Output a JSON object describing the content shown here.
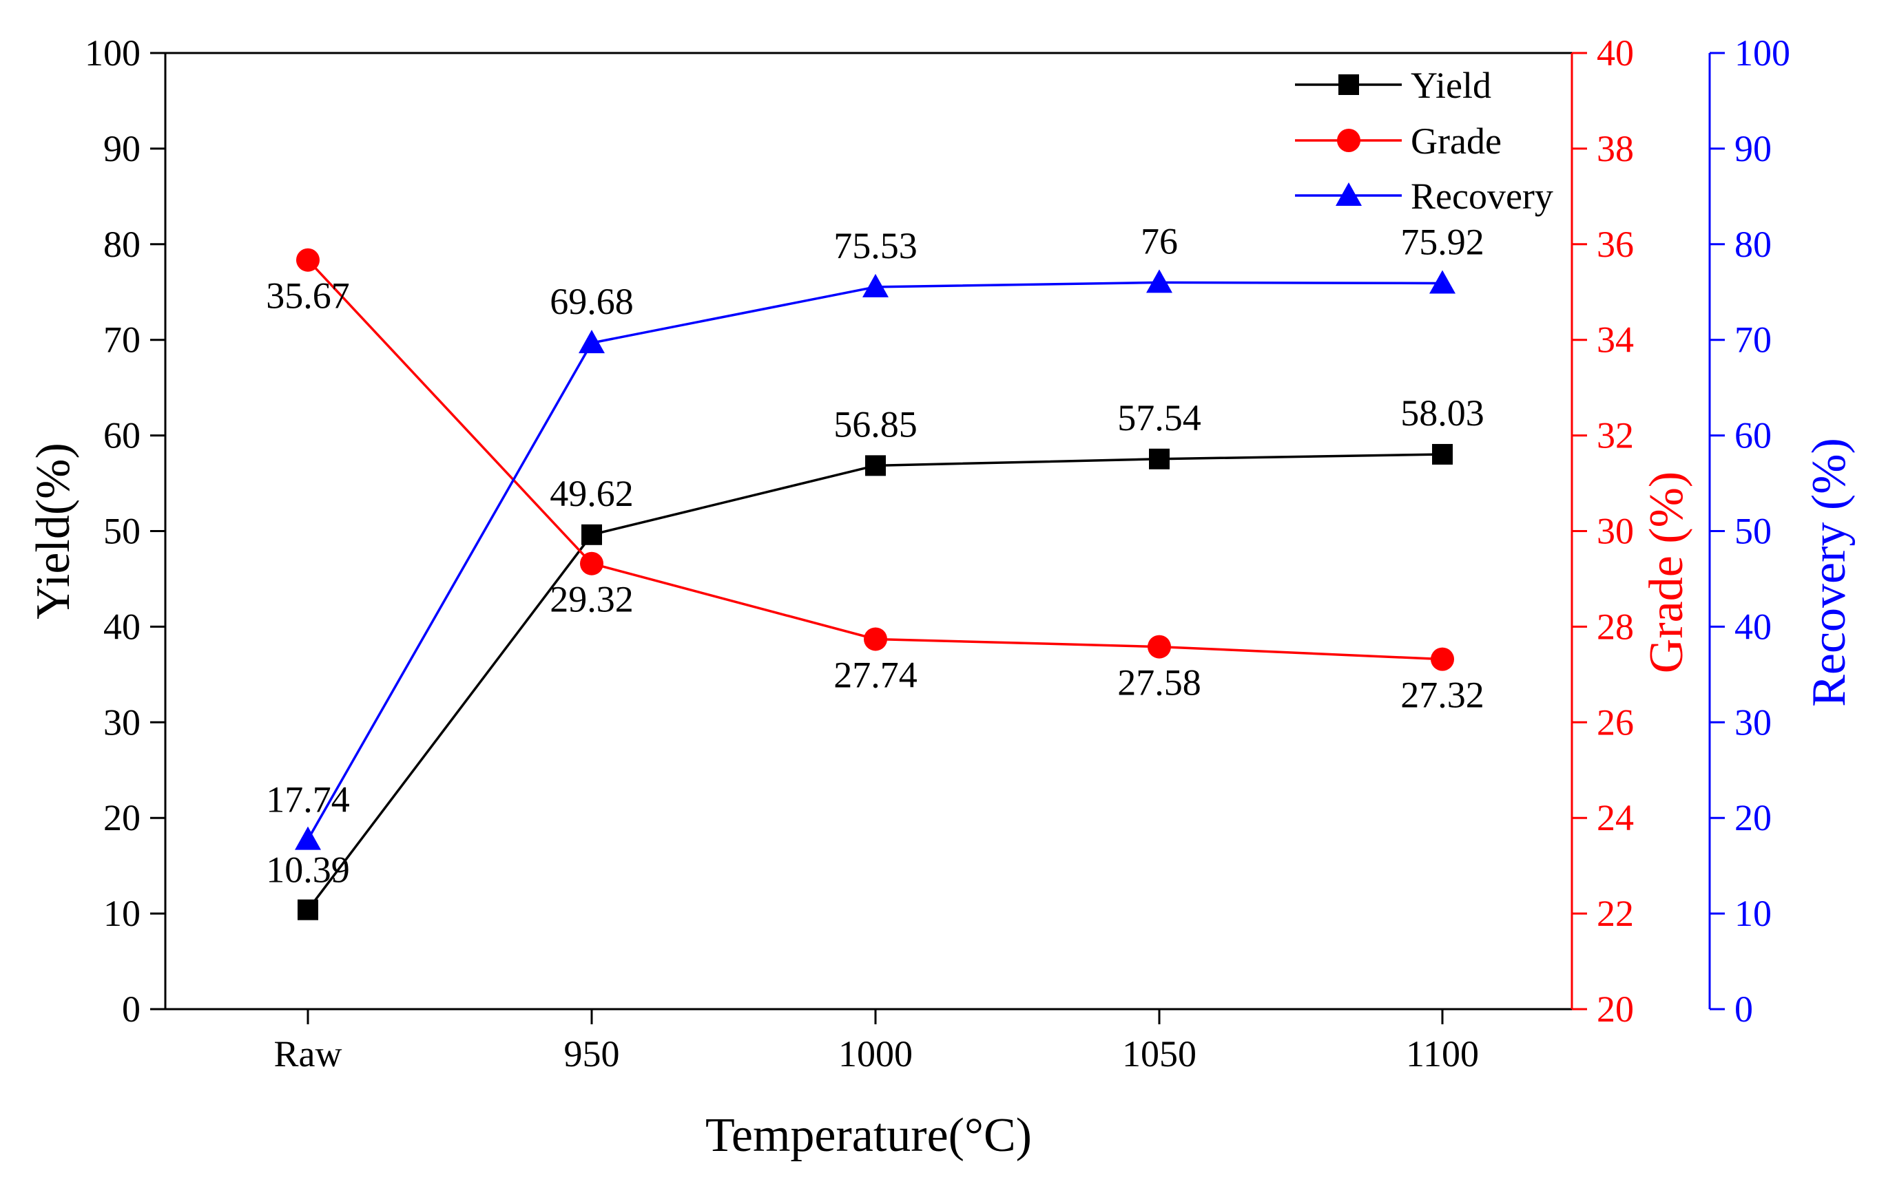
{
  "chart_data": {
    "type": "line",
    "title": "",
    "xlabel": "Temperature(°C)",
    "categories": [
      "Raw",
      "950",
      "1000",
      "1050",
      "1100"
    ],
    "axes": {
      "left": {
        "label": "Yield(%)",
        "range": [
          0,
          100
        ],
        "step": 10,
        "color": "#000000"
      },
      "right1": {
        "label": "Grade (%)",
        "range": [
          20,
          40
        ],
        "step": 2,
        "color": "#ff0000"
      },
      "right2": {
        "label": "Recovery (%)",
        "range": [
          0,
          100
        ],
        "step": 10,
        "color": "#0000ff"
      }
    },
    "series": [
      {
        "name": "Yield",
        "axis": "left",
        "color": "#000000",
        "marker": "square",
        "values": [
          10.39,
          49.62,
          56.85,
          57.54,
          58.03
        ],
        "labels": [
          "10.39",
          "49.62",
          "56.85",
          "57.54",
          "58.03"
        ]
      },
      {
        "name": "Grade",
        "axis": "right1",
        "color": "#ff0000",
        "marker": "circle",
        "values": [
          35.67,
          29.32,
          27.74,
          27.58,
          27.32
        ],
        "labels": [
          "35.67",
          "29.32",
          "27.74",
          "27.58",
          "27.32"
        ]
      },
      {
        "name": "Recovery",
        "axis": "right2",
        "color": "#0000ff",
        "marker": "triangle",
        "values": [
          17.74,
          69.68,
          75.53,
          76,
          75.92
        ],
        "labels": [
          "17.74",
          "69.68",
          "75.53",
          "76",
          "75.92"
        ]
      }
    ],
    "legend": {
      "position": "top-right",
      "entries": [
        "Yield",
        "Grade",
        "Recovery"
      ]
    },
    "grid": false
  }
}
